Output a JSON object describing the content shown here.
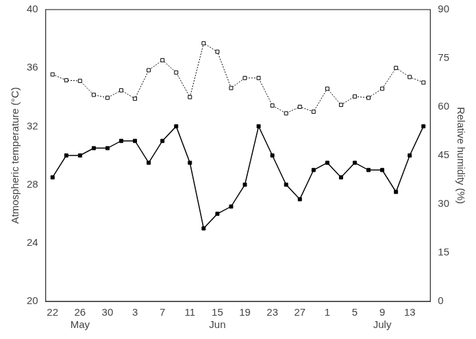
{
  "chart_data": {
    "type": "line",
    "categories": [
      "22",
      null,
      "26",
      null,
      "30",
      null,
      "3",
      null,
      "7",
      null,
      "11",
      null,
      "15",
      null,
      "19",
      null,
      "23",
      null,
      "27",
      null,
      "1",
      null,
      "5",
      null,
      "9",
      null,
      "13",
      null
    ],
    "months": [
      null,
      null,
      "May",
      null,
      null,
      null,
      null,
      null,
      null,
      null,
      null,
      null,
      "Jun",
      null,
      null,
      null,
      null,
      null,
      null,
      null,
      null,
      null,
      null,
      null,
      "July",
      null,
      null,
      null
    ],
    "y_label": "Atmospheric temperature (°C)",
    "y2_label": "Relative humidity (%)",
    "ylim": [
      20,
      40
    ],
    "yticks": [
      20,
      24,
      28,
      32,
      36,
      40
    ],
    "y2lim": [
      0,
      90
    ],
    "y2ticks": [
      0,
      15,
      30,
      45,
      60,
      75,
      90
    ],
    "grid": false,
    "series": [
      {
        "color": "#000000",
        "marker": "square",
        "line_style": "solid",
        "values": [
          28.5,
          30,
          30,
          30.5,
          30.5,
          31,
          31,
          29.5,
          31,
          32,
          29.5,
          25,
          26,
          26.5,
          28,
          32,
          30,
          28,
          27,
          29,
          29.5,
          28.5,
          29.5,
          29,
          29,
          27.5,
          30,
          32
        ]
      },
      {
        "color": "#000000",
        "marker": "open_square",
        "line_style": "dotted",
        "axis": "y2",
        "values": [
          70,
          68.2,
          68,
          63.7,
          62.8,
          65.1,
          62.5,
          71.3,
          74.4,
          70.6,
          63,
          79.6,
          77,
          65.8,
          68.9,
          68.9,
          60.4,
          58,
          60,
          58.5,
          65.6,
          60.6,
          63.2,
          62.8,
          65.6,
          72,
          69.2,
          67.5
        ]
      }
    ]
  }
}
